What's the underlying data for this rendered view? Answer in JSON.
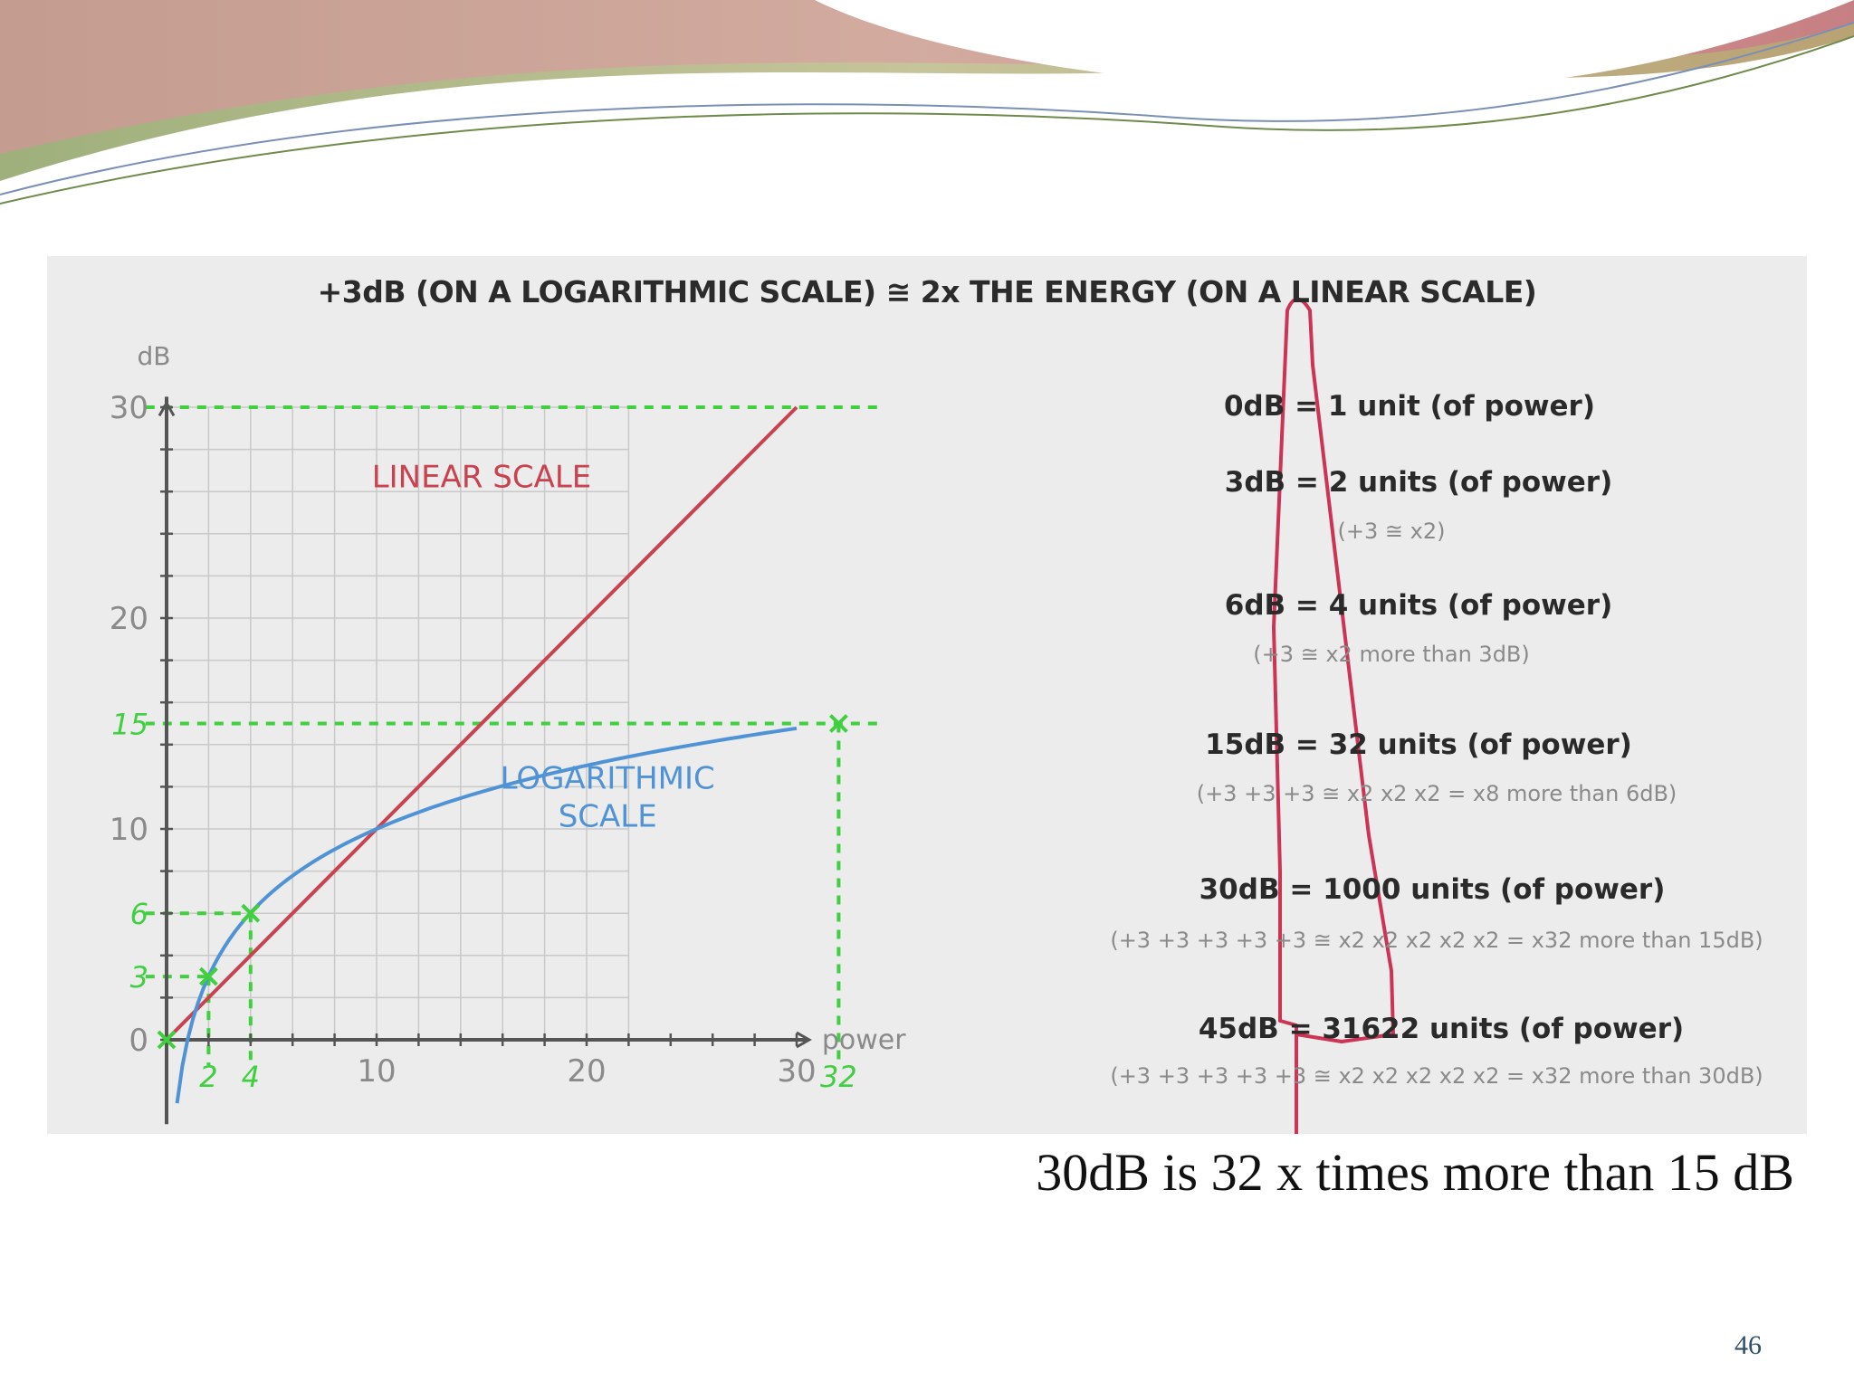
{
  "slide": {
    "caption": "30dB is 32 x times more than 15 dB",
    "page_number": "46"
  },
  "figure": {
    "title": "+3dB (ON A LOGARITHMIC SCALE) ≅ 2x THE ENERGY (ON A LINEAR SCALE)",
    "equations": [
      {
        "main": "0dB = 1 unit (of power)",
        "note": ""
      },
      {
        "main": "3dB = 2 units (of power)",
        "note": "(+3 ≅ x2)"
      },
      {
        "main": "6dB = 4 units (of power)",
        "note": "(+3 ≅ x2 more than 3dB)"
      },
      {
        "main": "15dB = 32 units (of power)",
        "note": "(+3 +3 +3 ≅ x2 x2 x2 = x8 more than 6dB)"
      },
      {
        "main": "30dB = 1000 units (of power)",
        "note": "(+3 +3 +3 +3 +3 ≅ x2 x2 x2 x2 x2 = x32 more than 15dB)"
      },
      {
        "main": "45dB = 31622 units (of power)",
        "note": "(+3 +3 +3 +3 +3 ≅ x2 x2 x2 x2 x2 = x32 more than 30dB)"
      }
    ]
  },
  "chart_data": {
    "type": "line",
    "title": "+3dB (ON A LOGARITHMIC SCALE) ≅ 2x THE ENERGY (ON A LINEAR SCALE)",
    "xlabel": "power",
    "ylabel": "dB",
    "xlim": [
      0,
      34
    ],
    "ylim": [
      0,
      30
    ],
    "grid": true,
    "x_ticks": [
      "10",
      "20",
      "30"
    ],
    "y_ticks": [
      "0",
      "10",
      "20",
      "30"
    ],
    "highlight_x_ticks": [
      "2",
      "4",
      "32"
    ],
    "highlight_y_ticks": [
      "3",
      "6",
      "15"
    ],
    "series": [
      {
        "name": "LINEAR SCALE",
        "color": "#c8424f",
        "points": [
          [
            0,
            0
          ],
          [
            10,
            10
          ],
          [
            20,
            20
          ],
          [
            30,
            30
          ]
        ]
      },
      {
        "name": "LOGARITHMIC SCALE",
        "color": "#4f93d6",
        "points": [
          [
            0.5,
            -3
          ],
          [
            1,
            0
          ],
          [
            2,
            3
          ],
          [
            4,
            6
          ],
          [
            8,
            9
          ],
          [
            10,
            10
          ],
          [
            16,
            12
          ],
          [
            20,
            13
          ],
          [
            25,
            14
          ],
          [
            30,
            15
          ]
        ]
      }
    ],
    "markers": [
      {
        "x": 0,
        "y": 0
      },
      {
        "x": 2,
        "y": 3
      },
      {
        "x": 4,
        "y": 6
      },
      {
        "x": 32,
        "y": 15
      }
    ],
    "colors": {
      "linear": "#c8424f",
      "log": "#4f93d6",
      "guide": "#3fcf3f",
      "ellipse": "#cc3355"
    }
  }
}
